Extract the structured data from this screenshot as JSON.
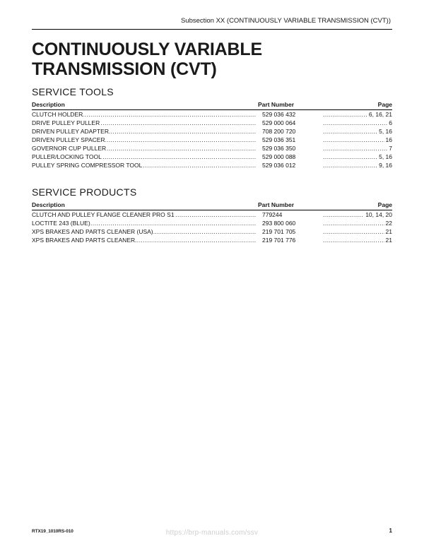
{
  "header": {
    "subsection": "Subsection XX (CONTINUOUSLY VARIABLE TRANSMISSION (CVT))"
  },
  "title": "CONTINUOUSLY VARIABLE TRANSMISSION (CVT)",
  "tools_section": {
    "heading": "SERVICE TOOLS",
    "columns": {
      "desc": "Description",
      "part": "Part Number",
      "page": "Page"
    },
    "rows": [
      {
        "desc": "CLUTCH HOLDER",
        "part": "529 036 432",
        "page": "6, 16, 21"
      },
      {
        "desc": "DRIVE PULLEY PULLER",
        "part": "529 000 064",
        "page": "6"
      },
      {
        "desc": "DRIVEN PULLEY ADAPTER",
        "part": "708 200 720",
        "page": "5, 16"
      },
      {
        "desc": "DRIVEN PULLEY SPACER",
        "part": "529 036 351",
        "page": "16"
      },
      {
        "desc": "GOVERNOR CUP PULLER",
        "part": "529 036 350",
        "page": "7"
      },
      {
        "desc": "PULLER/LOCKING TOOL",
        "part": "529 000 088",
        "page": "5, 16"
      },
      {
        "desc": "PULLEY SPRING COMPRESSOR TOOL",
        "part": "529 036 012",
        "page": "9, 16"
      }
    ]
  },
  "products_section": {
    "heading": "SERVICE PRODUCTS",
    "columns": {
      "desc": "Description",
      "part": "Part Number",
      "page": "Page"
    },
    "rows": [
      {
        "desc": "CLUTCH AND PULLEY FLANGE CLEANER PRO S1",
        "part": "779244",
        "page": "10, 14, 20"
      },
      {
        "desc": "LOCTITE 243 (BLUE)",
        "part": "293 800 060",
        "page": "22"
      },
      {
        "desc": "XPS BRAKES AND PARTS CLEANER (USA)",
        "part": "219 701 705",
        "page": "21"
      },
      {
        "desc": "XPS BRAKES AND PARTS CLEANER",
        "part": "219 701 776",
        "page": "21"
      }
    ]
  },
  "footer": {
    "doc_id": "RTX19_1010RS-010",
    "page_num": "1"
  },
  "watermark": "https://brp-manuals.com/ssv"
}
